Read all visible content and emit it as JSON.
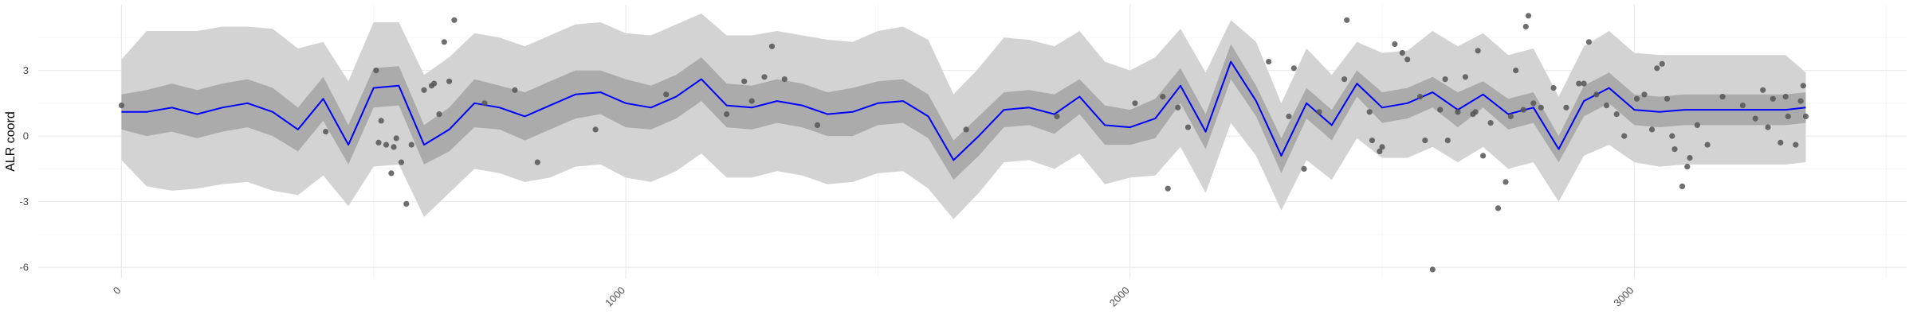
{
  "chart_data": {
    "type": "line",
    "title": "",
    "xlabel": "",
    "ylabel": "ALR coord",
    "xlim": [
      -165,
      3540
    ],
    "ylim": [
      -6.5,
      6.0
    ],
    "x_ticks": [
      0,
      1000,
      2000,
      3000
    ],
    "y_ticks": [
      3,
      0,
      -3,
      -6
    ],
    "x_tick_labels": [
      "0",
      "1000",
      "2000",
      "3000"
    ],
    "y_tick_labels": [
      "3",
      "0",
      "-3",
      "-6"
    ],
    "grid": true,
    "legend": "none",
    "colors": {
      "mean_line": "#0000ff",
      "band_95": "#d3d3d3",
      "band_50": "#ababab",
      "points": "#555555",
      "grid_major": "#ebebeb",
      "grid_minor": "#f5f5f5"
    },
    "series": [
      {
        "kind": "line",
        "x": [
          0,
          50,
          100,
          150,
          200,
          250,
          300,
          350,
          400,
          450,
          500,
          550,
          600,
          650,
          700,
          750,
          800,
          850,
          900,
          950,
          1000,
          1050,
          1100,
          1150,
          1200,
          1250,
          1300,
          1350,
          1400,
          1450,
          1500,
          1550,
          1600,
          1650,
          1700,
          1750,
          1800,
          1850,
          1900,
          1950,
          2000,
          2050,
          2100,
          2150,
          2200,
          2250,
          2300,
          2350,
          2400,
          2450,
          2500,
          2550,
          2600,
          2650,
          2700,
          2750,
          2800,
          2850,
          2900,
          2950,
          3000,
          3050,
          3100,
          3150,
          3200,
          3250,
          3300,
          3340
        ],
        "y": [
          1.1,
          1.1,
          1.3,
          1.0,
          1.3,
          1.5,
          1.1,
          0.3,
          1.7,
          -0.4,
          2.2,
          2.3,
          -0.4,
          0.3,
          1.5,
          1.3,
          0.9,
          1.4,
          1.9,
          2.0,
          1.5,
          1.3,
          1.8,
          2.6,
          1.4,
          1.3,
          1.6,
          1.4,
          1.0,
          1.1,
          1.5,
          1.6,
          0.9,
          -1.1,
          0.0,
          1.2,
          1.3,
          1.0,
          1.8,
          0.5,
          0.4,
          0.8,
          2.3,
          0.2,
          3.4,
          1.6,
          -0.9,
          1.5,
          0.5,
          2.4,
          1.3,
          1.5,
          2.0,
          1.2,
          1.9,
          1.0,
          1.3,
          -0.6,
          1.6,
          2.2,
          1.2,
          1.1,
          1.2,
          1.2,
          1.2,
          1.2,
          1.2,
          1.3
        ]
      },
      {
        "kind": "band",
        "x": [
          0,
          50,
          100,
          150,
          200,
          250,
          300,
          350,
          400,
          450,
          500,
          550,
          600,
          650,
          700,
          750,
          800,
          850,
          900,
          950,
          1000,
          1050,
          1100,
          1150,
          1200,
          1250,
          1300,
          1350,
          1400,
          1450,
          1500,
          1550,
          1600,
          1650,
          1700,
          1750,
          1800,
          1850,
          1900,
          1950,
          2000,
          2050,
          2100,
          2150,
          2200,
          2250,
          2300,
          2350,
          2400,
          2450,
          2500,
          2550,
          2600,
          2650,
          2700,
          2750,
          2800,
          2850,
          2900,
          2950,
          3000,
          3050,
          3100,
          3150,
          3200,
          3250,
          3300,
          3340
        ],
        "lower": [
          -1.1,
          -2.3,
          -2.5,
          -2.4,
          -2.2,
          -2.1,
          -2.5,
          -2.7,
          -1.8,
          -3.2,
          -1.4,
          -1.3,
          -3.7,
          -2.6,
          -1.5,
          -1.7,
          -2.1,
          -1.9,
          -1.4,
          -1.3,
          -1.9,
          -2.1,
          -1.6,
          -0.8,
          -1.9,
          -1.9,
          -1.6,
          -1.8,
          -2.2,
          -2.1,
          -1.7,
          -1.6,
          -2.4,
          -3.8,
          -2.6,
          -1.2,
          -1.1,
          -1.5,
          -0.8,
          -2.2,
          -1.9,
          -1.8,
          -0.5,
          -2.6,
          0.6,
          -0.9,
          -3.4,
          -1.1,
          -2.0,
          -0.1,
          -1.0,
          -1.0,
          -0.5,
          -1.2,
          -0.5,
          -1.5,
          -1.2,
          -3.0,
          -0.9,
          -0.4,
          -1.2,
          -1.4,
          -1.3,
          -1.3,
          -1.3,
          -1.3,
          -1.3,
          -1.2
        ],
        "upper": [
          3.5,
          4.8,
          4.8,
          4.8,
          5.0,
          5.0,
          4.9,
          4.0,
          4.3,
          2.5,
          5.2,
          5.2,
          2.8,
          3.6,
          4.7,
          4.5,
          4.1,
          4.6,
          5.1,
          5.2,
          4.7,
          4.6,
          5.1,
          5.6,
          4.6,
          4.6,
          4.8,
          4.6,
          4.4,
          4.3,
          4.8,
          5.0,
          4.4,
          1.9,
          3.1,
          4.5,
          4.4,
          4.1,
          4.8,
          3.4,
          3.0,
          3.6,
          4.9,
          2.9,
          5.3,
          4.3,
          1.5,
          4.0,
          2.8,
          4.3,
          3.8,
          3.9,
          4.8,
          4.1,
          4.7,
          3.7,
          4.0,
          1.8,
          4.1,
          4.8,
          3.8,
          3.7,
          3.7,
          3.7,
          3.7,
          3.7,
          3.7,
          2.9
        ]
      },
      {
        "kind": "band",
        "x": [
          0,
          50,
          100,
          150,
          200,
          250,
          300,
          350,
          400,
          450,
          500,
          550,
          600,
          650,
          700,
          750,
          800,
          850,
          900,
          950,
          1000,
          1050,
          1100,
          1150,
          1200,
          1250,
          1300,
          1350,
          1400,
          1450,
          1500,
          1550,
          1600,
          1650,
          1700,
          1750,
          1800,
          1850,
          1900,
          1950,
          2000,
          2050,
          2100,
          2150,
          2200,
          2250,
          2300,
          2350,
          2400,
          2450,
          2500,
          2550,
          2600,
          2650,
          2700,
          2750,
          2800,
          2850,
          2900,
          2950,
          3000,
          3050,
          3100,
          3150,
          3200,
          3250,
          3300,
          3340
        ],
        "lower": [
          0.3,
          0.0,
          0.2,
          -0.1,
          0.2,
          0.4,
          0.0,
          -0.7,
          0.7,
          -1.3,
          1.3,
          1.4,
          -1.3,
          -0.7,
          0.4,
          0.3,
          -0.2,
          0.3,
          0.8,
          1.0,
          0.4,
          0.3,
          0.8,
          1.6,
          0.4,
          0.3,
          0.6,
          0.4,
          0.0,
          0.0,
          0.5,
          0.6,
          -0.1,
          -2.0,
          -0.9,
          0.4,
          0.5,
          0.1,
          1.0,
          -0.4,
          -0.4,
          -0.1,
          1.5,
          -0.6,
          2.6,
          0.9,
          -1.7,
          0.8,
          -0.2,
          1.8,
          0.6,
          0.8,
          1.3,
          0.4,
          1.3,
          0.3,
          0.6,
          -1.2,
          0.9,
          1.5,
          0.5,
          0.4,
          0.5,
          0.5,
          0.5,
          0.5,
          0.5,
          0.6
        ],
        "upper": [
          1.9,
          2.1,
          2.4,
          2.1,
          2.4,
          2.6,
          2.2,
          1.3,
          2.7,
          0.5,
          3.1,
          3.2,
          0.5,
          1.3,
          2.6,
          2.3,
          2.0,
          2.5,
          3.0,
          3.0,
          2.6,
          2.3,
          2.8,
          3.6,
          2.4,
          2.3,
          2.6,
          2.4,
          2.0,
          2.2,
          2.5,
          2.6,
          1.9,
          -0.2,
          0.9,
          2.0,
          2.1,
          1.9,
          2.6,
          1.4,
          1.2,
          1.7,
          3.1,
          1.0,
          4.2,
          2.3,
          -0.1,
          2.2,
          1.2,
          3.0,
          2.0,
          2.2,
          2.7,
          2.0,
          2.5,
          1.7,
          2.0,
          0.0,
          2.3,
          2.9,
          1.9,
          1.8,
          1.9,
          1.9,
          1.9,
          1.9,
          1.9,
          2.0
        ]
      },
      {
        "kind": "points",
        "x": [
          0,
          405,
          505,
          510,
          515,
          525,
          535,
          540,
          545,
          555,
          565,
          575,
          600,
          615,
          620,
          630,
          640,
          650,
          660,
          720,
          780,
          825,
          940,
          1080,
          1200,
          1235,
          1250,
          1275,
          1290,
          1315,
          1380,
          1675,
          1855,
          2010,
          2065,
          2075,
          2095,
          2115,
          2275,
          2315,
          2325,
          2345,
          2375,
          2425,
          2430,
          2475,
          2480,
          2495,
          2500,
          2525,
          2540,
          2550,
          2575,
          2585,
          2600,
          2615,
          2625,
          2630,
          2650,
          2665,
          2680,
          2685,
          2690,
          2700,
          2715,
          2730,
          2745,
          2755,
          2765,
          2780,
          2785,
          2790,
          2800,
          2815,
          2840,
          2865,
          2890,
          2900,
          2910,
          2925,
          2945,
          2965,
          2980,
          3005,
          3020,
          3035,
          3045,
          3055,
          3065,
          3075,
          3080,
          3095,
          3105,
          3110,
          3125,
          3145,
          3175,
          3215,
          3240,
          3255,
          3265,
          3275,
          3290,
          3300,
          3305,
          3320,
          3330,
          3335,
          3340
        ],
        "y": [
          1.4,
          0.2,
          3.0,
          -0.3,
          0.7,
          -0.4,
          -1.7,
          -0.5,
          -0.1,
          -1.2,
          -3.1,
          -0.4,
          2.1,
          2.3,
          2.4,
          1.0,
          4.3,
          2.5,
          5.3,
          1.5,
          2.1,
          -1.2,
          0.3,
          1.9,
          1.0,
          2.5,
          1.6,
          2.7,
          4.1,
          2.6,
          0.5,
          0.3,
          0.9,
          1.5,
          1.8,
          -2.4,
          1.3,
          0.4,
          3.4,
          0.9,
          3.1,
          -1.5,
          1.1,
          2.6,
          5.3,
          1.1,
          -0.2,
          -0.7,
          -0.5,
          4.2,
          3.8,
          3.5,
          1.8,
          -0.2,
          -6.1,
          1.2,
          2.6,
          -0.2,
          1.1,
          2.7,
          1.0,
          1.1,
          3.9,
          -0.9,
          0.6,
          -3.3,
          -2.1,
          0.9,
          3.0,
          1.2,
          5.0,
          5.5,
          1.5,
          1.3,
          2.2,
          1.3,
          2.4,
          2.4,
          4.3,
          1.9,
          1.4,
          1.0,
          0.0,
          1.7,
          1.9,
          0.3,
          3.1,
          3.3,
          1.7,
          0.0,
          -0.6,
          -2.3,
          -1.4,
          -1.0,
          0.5,
          -0.4,
          1.8,
          1.4,
          0.8,
          2.1,
          0.4,
          1.7,
          -0.3,
          1.8,
          0.9,
          -0.4,
          1.6,
          2.3,
          0.9
        ]
      }
    ]
  }
}
